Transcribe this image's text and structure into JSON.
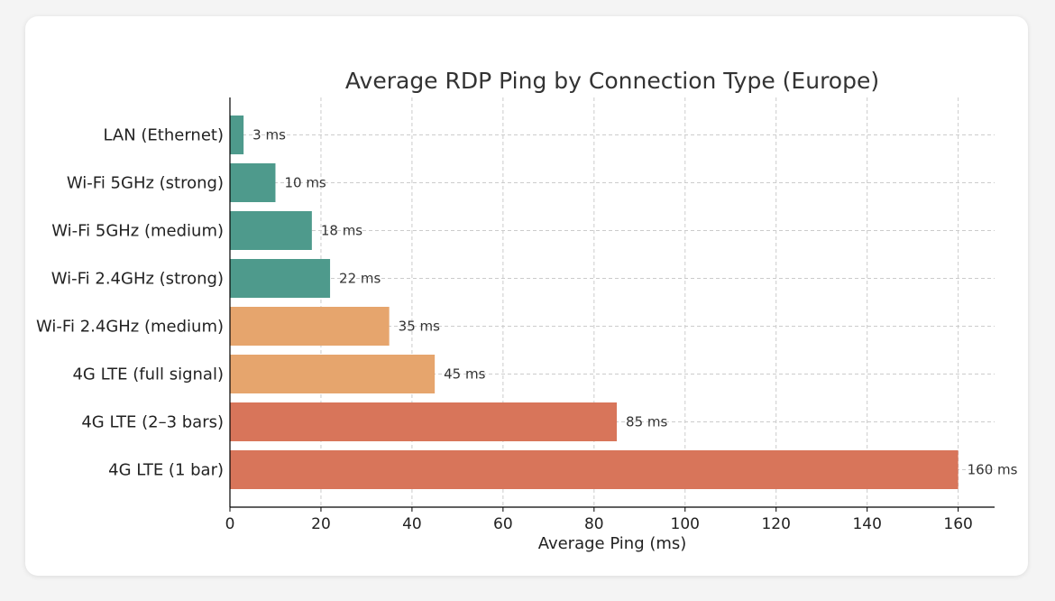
{
  "chart_data": {
    "type": "bar",
    "orientation": "horizontal",
    "title": "Average RDP Ping by Connection Type (Europe)",
    "xlabel": "Average Ping (ms)",
    "ylabel": "",
    "xlim": [
      0,
      168
    ],
    "xticks": [
      0,
      20,
      40,
      60,
      80,
      100,
      120,
      140,
      160
    ],
    "grid": true,
    "categories": [
      "LAN (Ethernet)",
      "Wi-Fi 5GHz (strong)",
      "Wi-Fi 5GHz (medium)",
      "Wi-Fi 2.4GHz (strong)",
      "Wi-Fi 2.4GHz (medium)",
      "4G LTE (full signal)",
      "4G LTE (2–3 bars)",
      "4G LTE (1 bar)"
    ],
    "values": [
      3,
      10,
      18,
      22,
      35,
      45,
      85,
      160
    ],
    "value_labels": [
      "3 ms",
      "10 ms",
      "18 ms",
      "22 ms",
      "35 ms",
      "45 ms",
      "85 ms",
      "160 ms"
    ],
    "colors": [
      "#4e9a8c",
      "#4e9a8c",
      "#4e9a8c",
      "#4e9a8c",
      "#e6a56d",
      "#e6a56d",
      "#d8755a",
      "#d8755a"
    ]
  }
}
